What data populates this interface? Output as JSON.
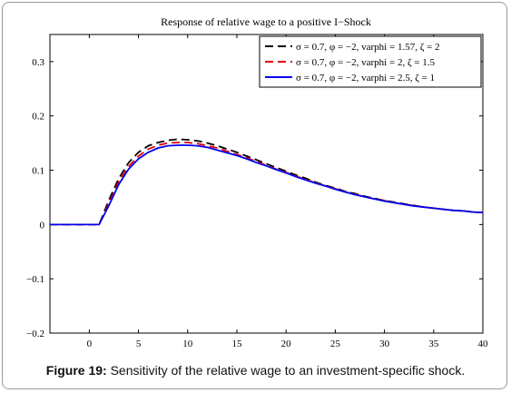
{
  "caption": {
    "label": "Figure 19:",
    "text": " Sensitivity of the relative wage to an investment-specific shock."
  },
  "chart_data": {
    "type": "line",
    "title": "Response of relative wage to a positive I−Shock",
    "xlabel": "",
    "ylabel": "",
    "xlim": [
      -4,
      40
    ],
    "ylim": [
      -0.2,
      0.35
    ],
    "x_ticks": [
      0,
      5,
      10,
      15,
      20,
      25,
      30,
      35,
      40
    ],
    "x_tick_labels": [
      "0",
      "5",
      "10",
      "15",
      "20",
      "25",
      "30",
      "35",
      "40"
    ],
    "y_ticks": [
      -0.2,
      -0.1,
      0,
      0.1,
      0.2,
      0.3
    ],
    "y_tick_labels": [
      "−0.2",
      "−0.1",
      "0",
      "0.1",
      "0.2",
      "0.3"
    ],
    "grid": false,
    "legend_position": "top-right",
    "x": [
      -4,
      -3,
      -2,
      -1,
      0,
      1,
      2,
      3,
      4,
      5,
      6,
      7,
      8,
      9,
      10,
      11,
      12,
      13,
      14,
      15,
      16,
      17,
      18,
      19,
      20,
      21,
      22,
      23,
      24,
      25,
      26,
      27,
      28,
      29,
      30,
      31,
      32,
      33,
      34,
      35,
      36,
      37,
      38,
      39,
      40
    ],
    "series": [
      {
        "name": "σ = 0.7, φ = −2, varphi = 1.57, ζ = 2",
        "color": "#000000",
        "dash": "dashed",
        "values": [
          0,
          0,
          0,
          0,
          0,
          0,
          0.045,
          0.085,
          0.114,
          0.133,
          0.145,
          0.151,
          0.155,
          0.157,
          0.156,
          0.154,
          0.15,
          0.145,
          0.139,
          0.133,
          0.126,
          0.119,
          0.112,
          0.105,
          0.098,
          0.091,
          0.085,
          0.078,
          0.072,
          0.067,
          0.061,
          0.057,
          0.052,
          0.048,
          0.044,
          0.041,
          0.038,
          0.035,
          0.032,
          0.03,
          0.028,
          0.026,
          0.025,
          0.023,
          0.022
        ]
      },
      {
        "name": "σ = 0.7, φ = −2, varphi = 2, ζ = 1.5",
        "color": "#e00000",
        "dash": "dashed",
        "values": [
          0,
          0,
          0,
          0,
          0,
          0,
          0.039,
          0.079,
          0.107,
          0.126,
          0.139,
          0.146,
          0.15,
          0.151,
          0.151,
          0.149,
          0.145,
          0.141,
          0.135,
          0.129,
          0.123,
          0.116,
          0.109,
          0.102,
          0.096,
          0.089,
          0.083,
          0.077,
          0.071,
          0.066,
          0.06,
          0.056,
          0.051,
          0.047,
          0.044,
          0.04,
          0.037,
          0.035,
          0.032,
          0.03,
          0.028,
          0.026,
          0.025,
          0.023,
          0.022
        ]
      },
      {
        "name": "σ = 0.7, φ = −2, varphi = 2.5, ζ = 1",
        "color": "#0000ee",
        "dash": "solid",
        "values": [
          0,
          0,
          0,
          0,
          0,
          0,
          0.035,
          0.074,
          0.102,
          0.121,
          0.133,
          0.141,
          0.145,
          0.146,
          0.146,
          0.145,
          0.142,
          0.137,
          0.132,
          0.127,
          0.121,
          0.114,
          0.108,
          0.101,
          0.095,
          0.088,
          0.082,
          0.076,
          0.071,
          0.065,
          0.06,
          0.055,
          0.051,
          0.047,
          0.043,
          0.04,
          0.037,
          0.034,
          0.032,
          0.03,
          0.028,
          0.026,
          0.025,
          0.023,
          0.022
        ]
      }
    ]
  }
}
